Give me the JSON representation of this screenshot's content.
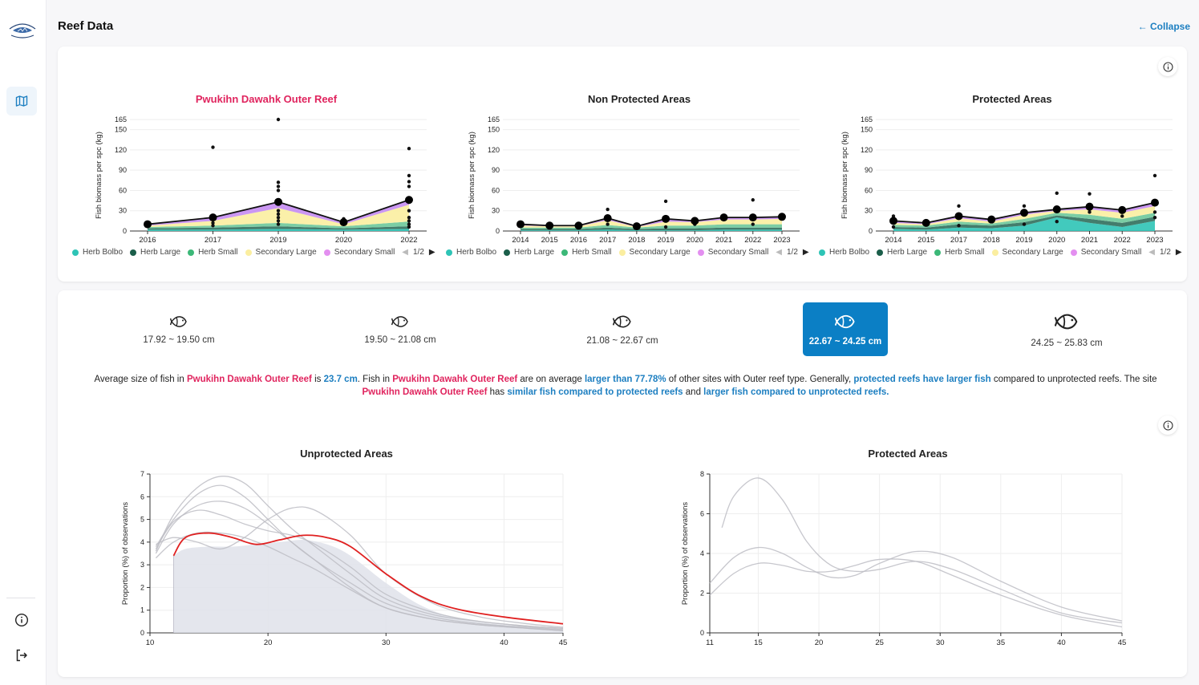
{
  "sidebar": {
    "logo_alt": "MICRONESIA REEF MONITORING",
    "nav_items": [
      {
        "name": "map",
        "active": true
      }
    ],
    "bottom_items": [
      {
        "name": "info"
      },
      {
        "name": "logout"
      }
    ]
  },
  "header": {
    "title": "Reef Data",
    "collapse_label": "Collapse",
    "collapse_icon": "←"
  },
  "biomass_charts": [
    {
      "title": "Pwukihn Dawahk Outer Reef",
      "ylabel": "Fish biomass per spc (kg)",
      "yticks": [
        0,
        30,
        60,
        90,
        120,
        150,
        165
      ],
      "years": [
        "2016",
        "2017",
        "2019",
        "2020",
        "2022"
      ],
      "mean": [
        10,
        20,
        43,
        13,
        46
      ],
      "stack": {
        "herb_bolbo": [
          2,
          2,
          3,
          2,
          3
        ],
        "herb_large": [
          2,
          3,
          4,
          2,
          4
        ],
        "herb_small": [
          2,
          3,
          5,
          3,
          7
        ],
        "secondary_large": [
          2,
          7,
          22,
          3,
          25
        ],
        "secondary_small": [
          2,
          5,
          9,
          3,
          7
        ]
      },
      "points": [
        [
          0,
          8
        ],
        [
          0,
          12
        ],
        [
          1,
          124
        ],
        [
          1,
          18
        ],
        [
          1,
          12
        ],
        [
          1,
          8
        ],
        [
          2,
          165
        ],
        [
          2,
          72
        ],
        [
          2,
          66
        ],
        [
          2,
          60
        ],
        [
          2,
          30
        ],
        [
          2,
          25
        ],
        [
          2,
          20
        ],
        [
          2,
          15
        ],
        [
          2,
          10
        ],
        [
          3,
          18
        ],
        [
          3,
          10
        ],
        [
          4,
          122
        ],
        [
          4,
          82
        ],
        [
          4,
          73
        ],
        [
          4,
          66
        ],
        [
          4,
          30
        ],
        [
          4,
          20
        ],
        [
          4,
          15
        ],
        [
          4,
          10
        ],
        [
          4,
          6
        ]
      ]
    },
    {
      "title": "Non Protected Areas",
      "ylabel": "Fish biomass per spc (kg)",
      "yticks": [
        0,
        30,
        60,
        90,
        120,
        150,
        165
      ],
      "years": [
        "2014",
        "2015",
        "2016",
        "2017",
        "2018",
        "2019",
        "2020",
        "2021",
        "2022",
        "2023"
      ],
      "mean": [
        10,
        8,
        8,
        19,
        7,
        18,
        15,
        20,
        20,
        21
      ],
      "stack": {
        "herb_bolbo": [
          1,
          1,
          1,
          2,
          1,
          1,
          1,
          2,
          2,
          2
        ],
        "herb_large": [
          2,
          2,
          2,
          3,
          2,
          3,
          3,
          3,
          3,
          3
        ],
        "herb_small": [
          2,
          2,
          2,
          4,
          2,
          4,
          4,
          5,
          5,
          5
        ],
        "secondary_large": [
          3,
          2,
          2,
          7,
          1,
          6,
          5,
          7,
          7,
          8
        ],
        "secondary_small": [
          2,
          1,
          1,
          3,
          1,
          4,
          2,
          3,
          3,
          3
        ]
      },
      "points": [
        [
          3,
          32
        ],
        [
          3,
          10
        ],
        [
          5,
          44
        ],
        [
          5,
          6
        ],
        [
          6,
          10
        ],
        [
          8,
          46
        ],
        [
          8,
          10
        ],
        [
          9,
          20
        ]
      ]
    },
    {
      "title": "Protected Areas",
      "ylabel": "Fish biomass per spc (kg)",
      "yticks": [
        0,
        30,
        60,
        90,
        120,
        150,
        165
      ],
      "years": [
        "2014",
        "2015",
        "2017",
        "2018",
        "2019",
        "2020",
        "2021",
        "2022",
        "2023"
      ],
      "mean": [
        15,
        12,
        22,
        17,
        27,
        32,
        36,
        31,
        42
      ],
      "stack": {
        "herb_bolbo": [
          3,
          2,
          5,
          4,
          8,
          20,
          12,
          6,
          15
        ],
        "herb_large": [
          3,
          3,
          5,
          4,
          5,
          3,
          6,
          6,
          6
        ],
        "herb_small": [
          3,
          3,
          4,
          3,
          5,
          4,
          6,
          6,
          6
        ],
        "secondary_large": [
          3,
          2,
          5,
          3,
          6,
          3,
          8,
          9,
          10
        ],
        "secondary_small": [
          3,
          2,
          3,
          3,
          3,
          2,
          4,
          4,
          5
        ]
      },
      "points": [
        [
          0,
          22
        ],
        [
          0,
          6
        ],
        [
          2,
          37
        ],
        [
          2,
          8
        ],
        [
          4,
          37
        ],
        [
          4,
          10
        ],
        [
          5,
          56
        ],
        [
          5,
          14
        ],
        [
          6,
          55
        ],
        [
          6,
          28
        ],
        [
          7,
          22
        ],
        [
          8,
          82
        ],
        [
          8,
          28
        ],
        [
          8,
          20
        ]
      ]
    }
  ],
  "biomass_legend": {
    "items": [
      {
        "label": "Herb Bolbo",
        "color": "#2ec4b6"
      },
      {
        "label": "Herb Large",
        "color": "#1b5e4a"
      },
      {
        "label": "Herb Small",
        "color": "#3cb878"
      },
      {
        "label": "Secondary Large",
        "color": "#fbeea0"
      },
      {
        "label": "Secondary Small",
        "color": "#e38ff0"
      }
    ],
    "page": "1/2"
  },
  "size_classes": [
    {
      "label": "17.92 ~ 19.50 cm",
      "active": false
    },
    {
      "label": "19.50 ~ 21.08 cm",
      "active": false
    },
    {
      "label": "21.08 ~ 22.67 cm",
      "active": false
    },
    {
      "label": "22.67 ~ 24.25 cm",
      "active": true
    },
    {
      "label": "24.25 ~ 25.83 cm",
      "active": false
    }
  ],
  "summary": {
    "t1": "Average size of fish in ",
    "site1": "Pwukihn Dawahk Outer Reef",
    "t2": " is ",
    "avg": "23.7 cm",
    "t3": ". Fish in ",
    "site2": "Pwukihn Dawahk Outer Reef",
    "t4": " are on average ",
    "cmp": "larger than 77.78%",
    "t5": " of other sites with Outer reef type. Generally, ",
    "general": "protected reefs have larger fish",
    "t6": " compared to unprotected reefs. The site ",
    "site3": "Pwukihn Dawahk Outer Reef",
    "t7": " has ",
    "prot": "similar fish compared to protected reefs",
    "t8": " and ",
    "unprot": "larger fish compared to unprotected reefs."
  },
  "chart_data": [
    {
      "type": "line",
      "title": "Unprotected Areas",
      "ylabel": "Proportion (%) of observations",
      "xlim": [
        10,
        45
      ],
      "ylim": [
        0,
        7
      ],
      "xticks": [
        10,
        20,
        30,
        40,
        45
      ],
      "yticks": [
        0,
        1,
        2,
        3,
        4,
        5,
        6,
        7
      ],
      "highlight": {
        "color": "#e02020",
        "x": [
          12,
          13,
          15,
          17,
          19,
          21,
          23,
          25,
          27,
          30,
          33,
          36,
          40,
          45
        ],
        "y": [
          3.4,
          4.2,
          4.4,
          4.2,
          3.9,
          4.1,
          4.3,
          4.2,
          3.8,
          2.6,
          1.6,
          1.05,
          0.7,
          0.4
        ]
      },
      "shaded": {
        "x": [
          12,
          13,
          15,
          17,
          19,
          21,
          23,
          25,
          27,
          30,
          33,
          36,
          40,
          45
        ],
        "y": [
          3.4,
          3.7,
          3.8,
          3.8,
          3.9,
          4.0,
          4.1,
          3.9,
          3.4,
          2.2,
          1.2,
          0.65,
          0.35,
          0.15
        ]
      },
      "others": [
        {
          "x": [
            10.5,
            12,
            14,
            16,
            18,
            20,
            22,
            24,
            27,
            30,
            34,
            38,
            42,
            45
          ],
          "y": [
            3.6,
            5.2,
            6.4,
            6.9,
            6.6,
            5.6,
            4.6,
            3.8,
            2.6,
            1.5,
            0.8,
            0.5,
            0.3,
            0.2
          ]
        },
        {
          "x": [
            10.5,
            12,
            14,
            16,
            18,
            20,
            22,
            24,
            27,
            30,
            34,
            38,
            42,
            45
          ],
          "y": [
            3.8,
            5.0,
            6.1,
            6.5,
            6.0,
            5.0,
            4.0,
            3.2,
            2.2,
            1.3,
            0.7,
            0.4,
            0.25,
            0.15
          ]
        },
        {
          "x": [
            10.5,
            12,
            14,
            16,
            18,
            20,
            22,
            24,
            27,
            30,
            34,
            38,
            42,
            45
          ],
          "y": [
            3.5,
            4.8,
            5.6,
            5.8,
            5.5,
            4.8,
            4.0,
            3.2,
            2.0,
            1.1,
            0.6,
            0.35,
            0.2,
            0.1
          ]
        },
        {
          "x": [
            10.5,
            12,
            14,
            16,
            18,
            20,
            22,
            24,
            27,
            30,
            34,
            38,
            42,
            45
          ],
          "y": [
            3.7,
            4.9,
            5.4,
            5.2,
            4.8,
            4.5,
            4.3,
            3.9,
            2.9,
            1.7,
            0.9,
            0.5,
            0.3,
            0.2
          ]
        },
        {
          "x": [
            10.5,
            12,
            14,
            16,
            18,
            20,
            22,
            24,
            27,
            30,
            34,
            38,
            42,
            45
          ],
          "y": [
            3.9,
            4.2,
            4.0,
            3.7,
            4.2,
            5.0,
            5.5,
            5.4,
            4.3,
            2.6,
            1.3,
            0.7,
            0.4,
            0.25
          ]
        },
        {
          "x": [
            10.5,
            12,
            14,
            16,
            18,
            20,
            22,
            24,
            27,
            30,
            34,
            38,
            42,
            45
          ],
          "y": [
            3.3,
            4.0,
            4.4,
            4.4,
            4.2,
            3.8,
            3.3,
            2.8,
            1.9,
            1.1,
            0.6,
            0.35,
            0.2,
            0.1
          ]
        }
      ]
    },
    {
      "type": "line",
      "title": "Protected Areas",
      "ylabel": "Proportion (%) of observations",
      "xlim": [
        11,
        45
      ],
      "ylim": [
        0,
        8
      ],
      "xticks": [
        11,
        15,
        20,
        25,
        30,
        35,
        40,
        45
      ],
      "yticks": [
        0,
        2,
        4,
        6,
        8
      ],
      "highlight": null,
      "others": [
        {
          "x": [
            12,
            13,
            15,
            17,
            19,
            21,
            23,
            25,
            28,
            31,
            35,
            40,
            45
          ],
          "y": [
            5.3,
            6.9,
            7.8,
            6.7,
            4.6,
            3.4,
            3.1,
            3.2,
            3.6,
            3.2,
            2.2,
            1.0,
            0.5
          ]
        },
        {
          "x": [
            11,
            13,
            15,
            17,
            19,
            21,
            23,
            25,
            28,
            31,
            35,
            40,
            45
          ],
          "y": [
            2.5,
            3.8,
            4.3,
            4.0,
            3.3,
            2.8,
            2.9,
            3.5,
            4.1,
            3.8,
            2.6,
            1.3,
            0.6
          ]
        },
        {
          "x": [
            11,
            13,
            15,
            17,
            19,
            21,
            23,
            25,
            28,
            31,
            35,
            40,
            45
          ],
          "y": [
            1.9,
            3.0,
            3.5,
            3.4,
            3.1,
            3.1,
            3.4,
            3.7,
            3.6,
            2.9,
            1.9,
            0.9,
            0.3
          ]
        }
      ]
    }
  ]
}
